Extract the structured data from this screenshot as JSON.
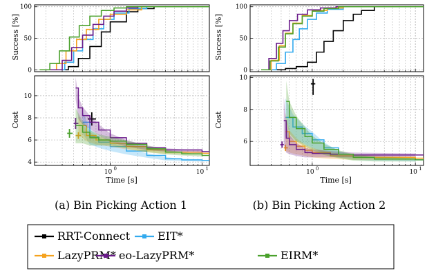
{
  "figure": {
    "legend_entries": [
      "RRT-Connect",
      "EIT*",
      "LazyPRM*",
      "eo-LazyPRM*",
      "EIRM*"
    ]
  },
  "colors": {
    "RRT-Connect": "#000000",
    "EIT*": "#33aaee",
    "LazyPRM*": "#f5a21e",
    "eo-LazyPRM*": "#6a1a8a",
    "EIRM*": "#4aa12c"
  },
  "chart_data": [
    {
      "type": "line",
      "panel": "a",
      "caption": "(a) Bin Picking Action 1",
      "x_scale": "log",
      "xlim": [
        0.15,
        12
      ],
      "xticklabels": [
        "10^0",
        "10^1"
      ],
      "xlabel": "Time [s]",
      "success": {
        "ylabel": "Success [%]",
        "ylim": [
          -3,
          103
        ],
        "yticks": [
          0,
          50,
          100
        ],
        "series": [
          {
            "name": "RRT-Connect",
            "x": [
              0.27,
              0.35,
              0.45,
              0.6,
              0.8,
              1.0,
              1.5,
              2.0,
              3.0,
              10
            ],
            "y": [
              0,
              5,
              18,
              37,
              60,
              76,
              92,
              97,
              100,
              100
            ]
          },
          {
            "name": "EIT*",
            "x": [
              0.26,
              0.32,
              0.4,
              0.5,
              0.65,
              0.85,
              1.1,
              1.6,
              2.5,
              10
            ],
            "y": [
              0,
              12,
              30,
              48,
              65,
              80,
              90,
              97,
              100,
              100
            ]
          },
          {
            "name": "LazyPRM*",
            "x": [
              0.19,
              0.26,
              0.33,
              0.43,
              0.55,
              0.75,
              1.0,
              1.5,
              2.2,
              10
            ],
            "y": [
              0,
              10,
              30,
              48,
              64,
              80,
              88,
              95,
              100,
              100
            ]
          },
          {
            "name": "eo-LazyPRM*",
            "x": [
              0.22,
              0.3,
              0.38,
              0.5,
              0.65,
              0.85,
              1.1,
              1.5,
              2.0,
              10
            ],
            "y": [
              0,
              15,
              35,
              55,
              72,
              85,
              93,
              98,
              100,
              100
            ]
          },
          {
            "name": "EIRM*",
            "x": [
              0.17,
              0.22,
              0.28,
              0.36,
              0.46,
              0.6,
              0.8,
              1.1,
              1.5,
              10
            ],
            "y": [
              0,
              10,
              30,
              52,
              70,
              85,
              94,
              98,
              100,
              100
            ]
          }
        ]
      },
      "cost": {
        "ylabel": "Cost",
        "ylim": [
          3.7,
          11.8
        ],
        "yticks": [
          4,
          6,
          8,
          10
        ],
        "series": [
          {
            "name": "RRT-Connect",
            "marker": {
              "x": 0.63,
              "y": 7.9,
              "yerr": [
                7.3,
                8.5
              ],
              "xerr": [
                0.57,
                0.7
              ]
            }
          },
          {
            "name": "EIT*",
            "x": [
              0.5,
              0.6,
              0.75,
              1.0,
              1.5,
              2.5,
              4.0,
              6.0,
              10
            ],
            "y": [
              7.6,
              6.3,
              5.8,
              5.4,
              5.0,
              4.6,
              4.3,
              4.2,
              4.15
            ],
            "band": [
              1.0,
              0.7,
              0.5,
              0.4,
              0.3,
              0.2,
              0.15,
              0.1,
              0.1
            ]
          },
          {
            "name": "LazyPRM*",
            "x": [
              0.45,
              0.55,
              0.7,
              1.0,
              1.5,
              2.5,
              4.0,
              10
            ],
            "y": [
              7.3,
              6.4,
              6.0,
              5.7,
              5.4,
              5.1,
              4.9,
              4.8
            ],
            "band": [
              0.8,
              0.5,
              0.4,
              0.3,
              0.25,
              0.2,
              0.15,
              0.1
            ],
            "marker": {
              "x": 0.45,
              "y": 6.4,
              "yerr": [
                6.1,
                6.7
              ],
              "xerr": [
                0.42,
                0.48
              ]
            }
          },
          {
            "name": "eo-LazyPRM*",
            "x": [
              0.42,
              0.45,
              0.5,
              0.6,
              0.75,
              1.0,
              1.5,
              2.5,
              4.0,
              10
            ],
            "y": [
              10.7,
              8.9,
              8.2,
              7.6,
              6.9,
              6.2,
              5.7,
              5.3,
              5.1,
              4.95
            ],
            "band": [
              1.0,
              1.0,
              0.8,
              0.6,
              0.5,
              0.4,
              0.3,
              0.2,
              0.15,
              0.1
            ],
            "marker": {
              "x": 0.42,
              "y": 7.5,
              "yerr": [
                7.0,
                8.0
              ],
              "xerr": [
                0.4,
                0.45
              ]
            }
          },
          {
            "name": "EIRM*",
            "x": [
              0.42,
              0.5,
              0.6,
              0.75,
              1.0,
              1.5,
              2.5,
              4.0,
              6.0,
              10
            ],
            "y": [
              7.3,
              6.7,
              6.2,
              6.0,
              5.9,
              5.6,
              5.2,
              4.9,
              4.75,
              4.6
            ],
            "band": [
              1.6,
              1.0,
              0.7,
              0.5,
              0.4,
              0.35,
              0.3,
              0.2,
              0.15,
              0.1
            ],
            "marker": {
              "x": 0.36,
              "y": 6.6,
              "yerr": [
                6.2,
                7.0
              ],
              "xerr": [
                0.34,
                0.39
              ]
            }
          }
        ]
      }
    },
    {
      "type": "line",
      "panel": "b",
      "caption": "(b) Bin Picking Action 2",
      "x_scale": "log",
      "xlim": [
        0.25,
        12
      ],
      "xticklabels": [
        "10^0",
        "10^1"
      ],
      "xlabel": "Time [s]",
      "success": {
        "ylabel": "Success [%]",
        "ylim": [
          -3,
          103
        ],
        "yticks": [
          0,
          50,
          100
        ],
        "series": [
          {
            "name": "RRT-Connect",
            "x": [
              0.45,
              0.55,
              0.7,
              0.9,
              1.1,
              1.3,
              1.6,
              2.0,
              2.5,
              3.0,
              4.0,
              10
            ],
            "y": [
              0,
              2,
              5,
              12,
              28,
              45,
              62,
              78,
              88,
              94,
              100,
              100
            ]
          },
          {
            "name": "EIT*",
            "x": [
              0.35,
              0.45,
              0.55,
              0.65,
              0.75,
              0.9,
              1.1,
              1.4,
              2.0,
              10
            ],
            "y": [
              0,
              10,
              28,
              48,
              65,
              80,
              90,
              96,
              100,
              100
            ]
          },
          {
            "name": "LazyPRM*",
            "x": [
              0.32,
              0.4,
              0.48,
              0.55,
              0.65,
              0.8,
              1.0,
              1.4,
              2.0,
              10
            ],
            "y": [
              0,
              15,
              38,
              58,
              74,
              86,
              94,
              98,
              100,
              100
            ]
          },
          {
            "name": "eo-LazyPRM*",
            "x": [
              0.32,
              0.38,
              0.45,
              0.52,
              0.6,
              0.72,
              0.9,
              1.2,
              1.7,
              10
            ],
            "y": [
              0,
              18,
              42,
              62,
              78,
              88,
              95,
              98,
              100,
              100
            ]
          },
          {
            "name": "EIRM*",
            "x": [
              0.32,
              0.39,
              0.47,
              0.55,
              0.65,
              0.8,
              1.0,
              1.3,
              1.8,
              10
            ],
            "y": [
              0,
              14,
              36,
              57,
              73,
              85,
              93,
              97,
              100,
              100
            ]
          }
        ]
      },
      "cost": {
        "ylabel": "Cost",
        "ylim": [
          4.5,
          10.1
        ],
        "yticks": [
          6,
          8,
          10
        ],
        "series": [
          {
            "name": "RRT-Connect",
            "marker": {
              "x": 1.02,
              "y": 9.6,
              "yerr": [
                8.9,
                9.9
              ],
              "xerr": [
                0.97,
                1.07
              ]
            }
          },
          {
            "name": "EIT*",
            "x": [
              0.55,
              0.65,
              0.8,
              1.0,
              1.3,
              1.8,
              2.5,
              4.0,
              10
            ],
            "y": [
              7.5,
              6.9,
              6.5,
              6.1,
              5.6,
              5.2,
              5.0,
              4.9,
              4.85
            ],
            "band": [
              1.2,
              0.8,
              0.6,
              0.5,
              0.35,
              0.2,
              0.15,
              0.1,
              0.1
            ]
          },
          {
            "name": "LazyPRM*",
            "x": [
              0.55,
              0.6,
              0.7,
              0.85,
              1.0,
              1.5,
              2.5,
              10
            ],
            "y": [
              6.6,
              6.0,
              5.7,
              5.45,
              5.3,
              5.1,
              5.0,
              4.95
            ],
            "band": [
              1.2,
              0.7,
              0.5,
              0.35,
              0.3,
              0.2,
              0.15,
              0.1
            ],
            "marker": {
              "x": 0.55,
              "y": 5.6,
              "yerr": [
                5.4,
                5.8
              ],
              "xerr": [
                0.53,
                0.58
              ]
            }
          },
          {
            "name": "eo-LazyPRM*",
            "x": [
              0.53,
              0.56,
              0.6,
              0.7,
              0.85,
              1.0,
              1.5,
              2.5,
              10
            ],
            "y": [
              7.3,
              6.2,
              5.8,
              5.5,
              5.3,
              5.25,
              5.2,
              5.15,
              5.15
            ],
            "band": [
              1.5,
              0.9,
              0.6,
              0.4,
              0.3,
              0.25,
              0.2,
              0.15,
              0.1
            ],
            "marker": {
              "x": 0.51,
              "y": 5.8,
              "yerr": [
                5.6,
                6.0
              ],
              "xerr": [
                0.49,
                0.53
              ]
            }
          },
          {
            "name": "EIRM*",
            "x": [
              0.56,
              0.6,
              0.7,
              0.85,
              1.0,
              1.3,
              1.8,
              2.5,
              4.0,
              10
            ],
            "y": [
              8.5,
              7.5,
              6.8,
              6.3,
              5.9,
              5.5,
              5.2,
              5.0,
              4.9,
              4.85
            ],
            "band": [
              1.3,
              1.0,
              0.8,
              0.6,
              0.45,
              0.35,
              0.25,
              0.2,
              0.15,
              0.1
            ]
          }
        ]
      }
    }
  ]
}
